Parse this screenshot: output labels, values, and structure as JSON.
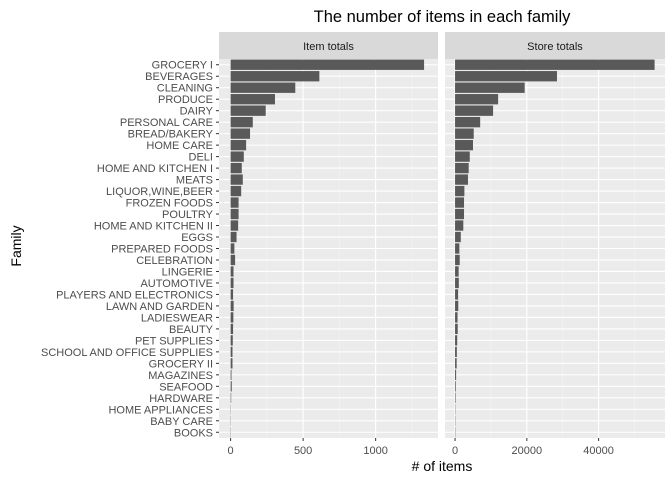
{
  "chart_data": {
    "type": "bar",
    "orientation": "horizontal",
    "title": "The number of items in each family",
    "xlabel": "# of items",
    "ylabel": "Family",
    "grid": true,
    "categories": [
      "GROCERY I",
      "BEVERAGES",
      "CLEANING",
      "PRODUCE",
      "DAIRY",
      "PERSONAL CARE",
      "BREAD/BAKERY",
      "HOME CARE",
      "DELI",
      "HOME AND KITCHEN I",
      "MEATS",
      "LIQUOR,WINE,BEER",
      "FROZEN FOODS",
      "POULTRY",
      "HOME AND KITCHEN II",
      "EGGS",
      "PREPARED FOODS",
      "CELEBRATION",
      "LINGERIE",
      "AUTOMOTIVE",
      "PLAYERS AND ELECTRONICS",
      "LAWN AND GARDEN",
      "LADIESWEAR",
      "BEAUTY",
      "PET SUPPLIES",
      "SCHOOL AND OFFICE SUPPLIES",
      "GROCERY II",
      "MAGAZINES",
      "SEAFOOD",
      "HARDWARE",
      "HOME APPLIANCES",
      "BABY CARE",
      "BOOKS"
    ],
    "panels": [
      {
        "name": "Item totals",
        "xlim": [
          -80,
          1430
        ],
        "xticks": [
          0,
          500,
          1000
        ],
        "values": [
          1334,
          612,
          446,
          306,
          242,
          153,
          134,
          107,
          91,
          77,
          84,
          73,
          55,
          55,
          52,
          41,
          26,
          31,
          20,
          20,
          17,
          21,
          19,
          17,
          15,
          13,
          13,
          6,
          8,
          4,
          1,
          1,
          1
        ]
      },
      {
        "name": "Store totals",
        "xlim": [
          -2800,
          58500
        ],
        "xticks": [
          0,
          20000,
          40000
        ],
        "values": [
          55600,
          28400,
          19400,
          12000,
          10600,
          7000,
          5200,
          5000,
          4100,
          3800,
          3600,
          2600,
          2500,
          2500,
          2300,
          1600,
          1200,
          1300,
          1000,
          1050,
          850,
          900,
          700,
          750,
          600,
          500,
          450,
          300,
          200,
          150,
          30,
          20,
          10
        ]
      }
    ]
  }
}
